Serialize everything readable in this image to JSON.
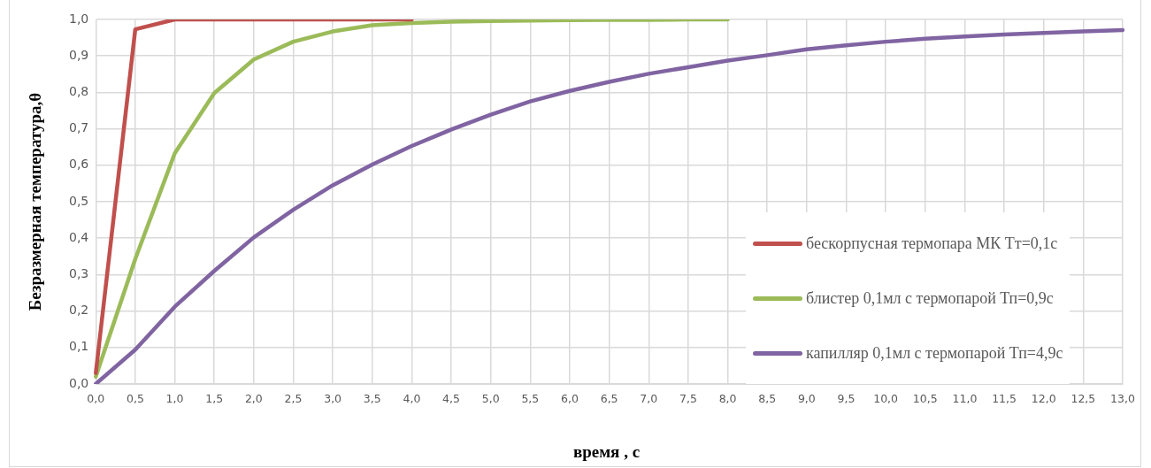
{
  "chart_data": {
    "type": "line",
    "xlabel": "время , с",
    "ylabel": "Безразмерная температура,θ",
    "categories": [
      "0,0",
      "0,5",
      "1,0",
      "1,5",
      "2,0",
      "2,5",
      "3,0",
      "3,5",
      "4,0",
      "4,5",
      "5,0",
      "5,5",
      "6,0",
      "6,5",
      "7,0",
      "7,5",
      "8,0",
      "8,5",
      "9,0",
      "9,5",
      "10,0",
      "10,5",
      "11,0",
      "11,5",
      "12,0",
      "12,5",
      "13,0"
    ],
    "series": [
      {
        "name": "бескорпусная термопара МК Тт=0,1с",
        "color": "#c0504d",
        "values": [
          0.03,
          0.973,
          1.0,
          1.0,
          1.0,
          1.0,
          1.0,
          1.0,
          1.0,
          null,
          null,
          null,
          null,
          null,
          null,
          null,
          null,
          null,
          null,
          null,
          null,
          null,
          null,
          null,
          null,
          null,
          null
        ]
      },
      {
        "name": "блистер 0,1мл с термопарой Тп=0,9с",
        "color": "#9bbb59",
        "values": [
          0.02,
          0.343,
          0.633,
          0.798,
          0.89,
          0.939,
          0.967,
          0.984,
          0.99,
          0.994,
          0.996,
          0.997,
          0.998,
          0.999,
          0.999,
          1.0,
          1.0,
          null,
          null,
          null,
          null,
          null,
          null,
          null,
          null,
          null,
          null
        ]
      },
      {
        "name": "капилляр 0,1мл с термопарой Тп=4,9с",
        "color": "#8064a2",
        "values": [
          0.0,
          0.094,
          0.212,
          0.31,
          0.402,
          0.478,
          0.545,
          0.602,
          0.653,
          0.698,
          0.739,
          0.775,
          0.804,
          0.829,
          0.851,
          0.869,
          0.887,
          0.902,
          0.918,
          0.929,
          0.939,
          0.947,
          0.953,
          0.959,
          0.963,
          0.967,
          0.971
        ]
      }
    ],
    "ylim": [
      0,
      1
    ],
    "yticks": [
      {
        "value": 0,
        "label": "0,0"
      },
      {
        "value": 0.1,
        "label": "0,1"
      },
      {
        "value": 0.2,
        "label": "0,2"
      },
      {
        "value": 0.3,
        "label": "0,3"
      },
      {
        "value": 0.4,
        "label": "0,4"
      },
      {
        "value": 0.5,
        "label": "0,5"
      },
      {
        "value": 0.6,
        "label": "0,6"
      },
      {
        "value": 0.7,
        "label": "0,7"
      },
      {
        "value": 0.8,
        "label": "0,8"
      },
      {
        "value": 0.9,
        "label": "0,9"
      },
      {
        "value": 1,
        "label": "1,0"
      }
    ],
    "grid": true,
    "legend": "bottom right",
    "marker": "none",
    "line_style": "solid"
  }
}
